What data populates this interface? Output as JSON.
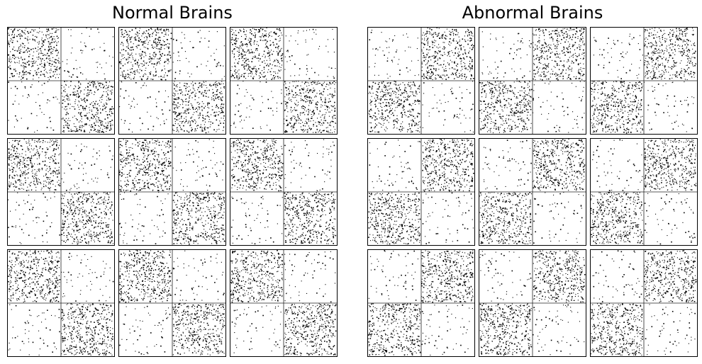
{
  "panels": [
    {
      "title": "Normal Brains",
      "dense_quadrants": [
        "top-left",
        "bottom-right"
      ],
      "rows": 3,
      "cols": 3
    },
    {
      "title": "Abnormal Brains",
      "dense_quadrants": [
        "top-right",
        "bottom-left"
      ],
      "rows": 3,
      "cols": 3
    }
  ],
  "colors": {
    "dot": "#000000",
    "border": "#000000",
    "background": "#ffffff",
    "divider": "#222222"
  }
}
